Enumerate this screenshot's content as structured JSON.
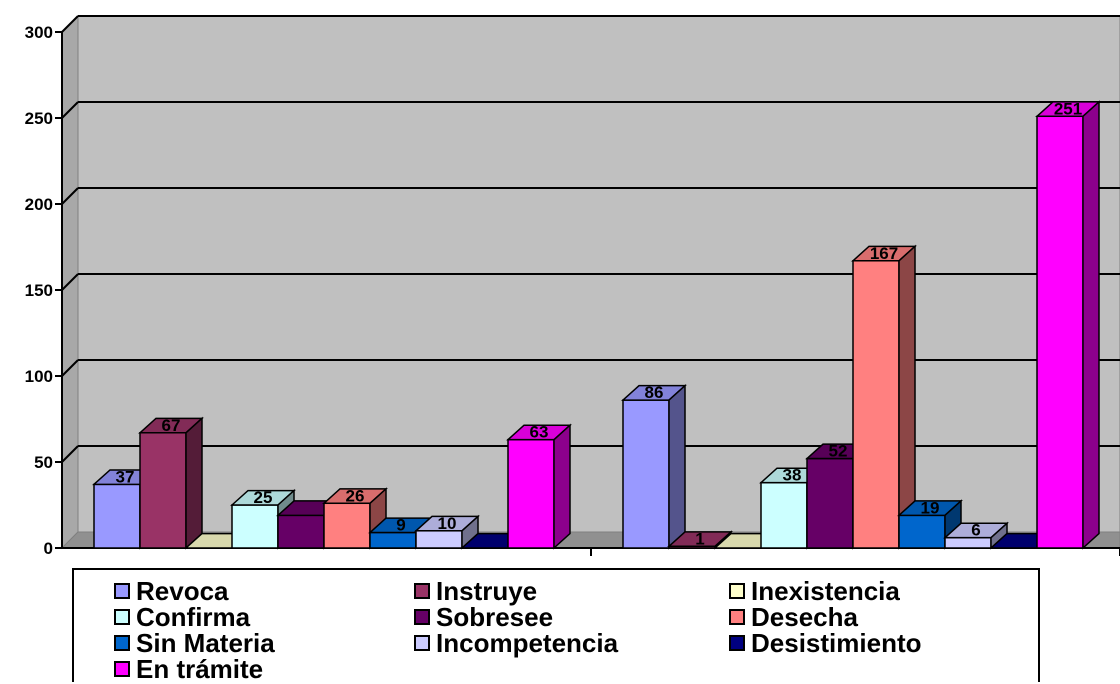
{
  "chart_data": {
    "type": "bar",
    "style": "3d-clustered",
    "categories": [
      "",
      ""
    ],
    "ylim": [
      0,
      300
    ],
    "yticks": [
      0,
      50,
      100,
      150,
      200,
      250,
      300
    ],
    "grid": true,
    "legend_position": "bottom",
    "series": [
      {
        "name": "Revoca",
        "color": "#9999ff",
        "values": [
          37,
          86
        ]
      },
      {
        "name": "Instruye",
        "color": "#993366",
        "values": [
          67,
          1
        ]
      },
      {
        "name": "Inexistencia",
        "color": "#ffffcc",
        "values": [
          0,
          0
        ]
      },
      {
        "name": "Confirma",
        "color": "#ccffff",
        "values": [
          25,
          38
        ]
      },
      {
        "name": "Sobresee",
        "color": "#660066",
        "values": [
          19,
          52
        ]
      },
      {
        "name": "Desecha",
        "color": "#ff8080",
        "values": [
          26,
          167
        ]
      },
      {
        "name": "Sin Materia",
        "color": "#0066cc",
        "values": [
          9,
          19
        ]
      },
      {
        "name": "Incompetencia",
        "color": "#ccccff",
        "values": [
          10,
          6
        ]
      },
      {
        "name": "Desistimiento",
        "color": "#000080",
        "values": [
          0,
          0
        ]
      },
      {
        "name": "En trámite",
        "color": "#ff00ff",
        "values": [
          63,
          251
        ]
      }
    ],
    "data_labels": [
      [
        "37",
        "67",
        "",
        "25",
        "",
        "26",
        "9",
        "10",
        "",
        "63"
      ],
      [
        "86",
        "1",
        "",
        "38",
        "52",
        "167",
        "19",
        "6",
        "",
        "251"
      ]
    ]
  }
}
